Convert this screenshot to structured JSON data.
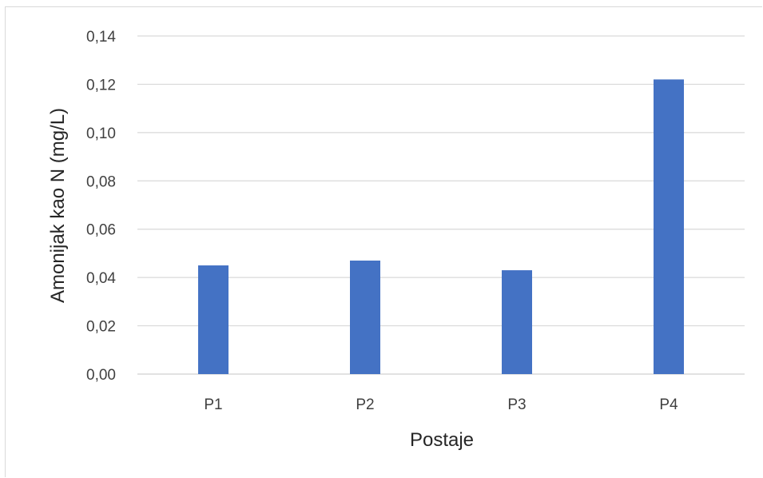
{
  "chart_data": {
    "type": "bar",
    "categories": [
      "P1",
      "P2",
      "P3",
      "P4"
    ],
    "values": [
      0.045,
      0.047,
      0.043,
      0.122
    ],
    "title": "",
    "xlabel": "Postaje",
    "ylabel": "Amonijak kao N (mg/L)",
    "ylim": [
      0,
      0.14
    ],
    "yticks": [
      "0,00",
      "0,02",
      "0,04",
      "0,06",
      "0,08",
      "0,10",
      "0,12",
      "0,14"
    ],
    "grid": true,
    "legend": "none",
    "bar_color": "#4472C4",
    "grid_color": "#d9d9d9"
  }
}
